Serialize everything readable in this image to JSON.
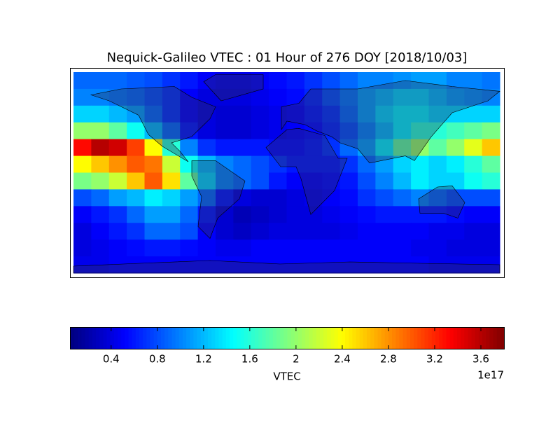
{
  "chart_data": {
    "type": "heatmap",
    "title": "Nequick-Galileo VTEC : 01 Hour of 276 DOY [2018/10/03]",
    "colormap": "jet",
    "x": [
      -172.5,
      -157.5,
      -142.5,
      -127.5,
      -112.5,
      -97.5,
      -82.5,
      -67.5,
      -52.5,
      -37.5,
      -22.5,
      -7.5,
      7.5,
      22.5,
      37.5,
      52.5,
      67.5,
      82.5,
      97.5,
      112.5,
      127.5,
      142.5,
      157.5,
      172.5
    ],
    "y": [
      77,
      63,
      49,
      35,
      21,
      7,
      -7,
      -21,
      -35,
      -49,
      -63,
      -77
    ],
    "z": [
      [
        0.9,
        0.9,
        0.9,
        0.85,
        0.8,
        0.7,
        0.6,
        0.5,
        0.45,
        0.45,
        0.5,
        0.55,
        0.6,
        0.7,
        0.8,
        0.9,
        1.0,
        1.0,
        1.05,
        1.1,
        1.1,
        1.0,
        1.0,
        0.95
      ],
      [
        1.0,
        1.0,
        0.95,
        0.9,
        0.8,
        0.7,
        0.5,
        0.4,
        0.4,
        0.4,
        0.45,
        0.5,
        0.55,
        0.65,
        0.8,
        0.95,
        1.1,
        1.2,
        1.3,
        1.3,
        1.2,
        1.1,
        1.05,
        1.0
      ],
      [
        1.3,
        1.3,
        1.2,
        1.1,
        0.9,
        0.7,
        0.5,
        0.4,
        0.35,
        0.35,
        0.4,
        0.45,
        0.5,
        0.6,
        0.7,
        0.9,
        1.1,
        1.3,
        1.4,
        1.4,
        1.3,
        1.3,
        1.3,
        1.3
      ],
      [
        2.0,
        2.0,
        1.8,
        1.5,
        1.2,
        0.9,
        0.6,
        0.4,
        0.35,
        0.35,
        0.4,
        0.45,
        0.5,
        0.55,
        0.65,
        0.8,
        1.0,
        1.2,
        1.4,
        1.6,
        1.6,
        1.7,
        1.8,
        1.9
      ],
      [
        3.3,
        3.6,
        3.5,
        3.1,
        2.4,
        1.6,
        1.0,
        0.7,
        0.6,
        0.6,
        0.6,
        0.55,
        0.55,
        0.6,
        0.7,
        0.9,
        1.1,
        1.4,
        1.8,
        2.0,
        1.8,
        2.0,
        2.3,
        2.6
      ],
      [
        2.4,
        2.6,
        2.8,
        3.0,
        2.9,
        2.2,
        1.5,
        1.2,
        1.0,
        0.9,
        0.8,
        0.7,
        0.6,
        0.6,
        0.6,
        0.7,
        0.9,
        1.1,
        1.3,
        1.4,
        1.3,
        1.4,
        1.6,
        1.8
      ],
      [
        1.9,
        2.0,
        2.2,
        2.6,
        3.0,
        2.5,
        1.8,
        1.3,
        1.0,
        0.9,
        0.8,
        0.6,
        0.5,
        0.5,
        0.55,
        0.6,
        0.8,
        1.0,
        1.2,
        1.4,
        1.3,
        1.3,
        1.5,
        1.6
      ],
      [
        0.8,
        0.9,
        1.1,
        1.2,
        1.4,
        1.3,
        1.1,
        0.9,
        0.6,
        0.4,
        0.35,
        0.35,
        0.4,
        0.45,
        0.5,
        0.55,
        0.7,
        0.8,
        0.9,
        1.0,
        0.9,
        0.8,
        0.8,
        0.8
      ],
      [
        0.5,
        0.6,
        0.7,
        0.9,
        1.1,
        1.1,
        0.9,
        0.6,
        0.35,
        0.25,
        0.3,
        0.35,
        0.4,
        0.4,
        0.45,
        0.5,
        0.55,
        0.6,
        0.6,
        0.6,
        0.6,
        0.55,
        0.5,
        0.5
      ],
      [
        0.4,
        0.5,
        0.6,
        0.7,
        0.9,
        0.9,
        0.8,
        0.5,
        0.35,
        0.3,
        0.35,
        0.4,
        0.4,
        0.4,
        0.4,
        0.45,
        0.5,
        0.5,
        0.5,
        0.5,
        0.45,
        0.45,
        0.4,
        0.4
      ],
      [
        0.4,
        0.45,
        0.5,
        0.55,
        0.6,
        0.6,
        0.55,
        0.5,
        0.45,
        0.45,
        0.5,
        0.5,
        0.5,
        0.5,
        0.5,
        0.5,
        0.5,
        0.5,
        0.5,
        0.45,
        0.45,
        0.4,
        0.4,
        0.4
      ],
      [
        0.45,
        0.45,
        0.5,
        0.5,
        0.5,
        0.5,
        0.5,
        0.5,
        0.5,
        0.5,
        0.5,
        0.5,
        0.5,
        0.5,
        0.5,
        0.5,
        0.5,
        0.5,
        0.5,
        0.5,
        0.45,
        0.45,
        0.45,
        0.45
      ]
    ],
    "colorbar_label": "VTEC",
    "colorbar_offset": "1e17",
    "clim": [
      0.05,
      3.8
    ],
    "colorbar_ticks": [
      0.4,
      0.8,
      1.2,
      1.6,
      2.0,
      2.4,
      2.8,
      3.2,
      3.6
    ]
  }
}
